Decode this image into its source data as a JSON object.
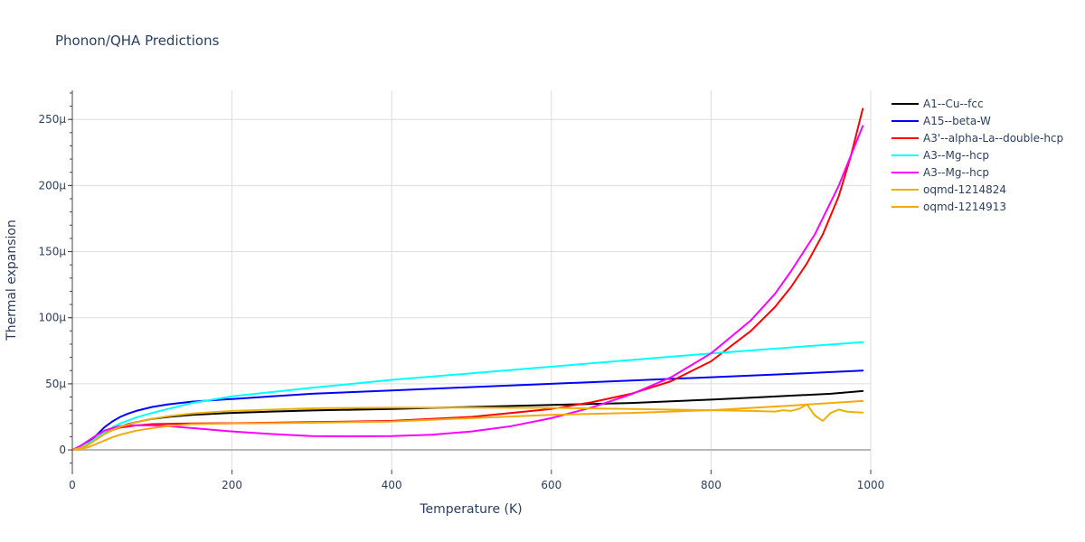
{
  "chart_data": {
    "type": "line",
    "title": "Phonon/QHA Predictions",
    "xlabel": "Temperature (K)",
    "ylabel": "Thermal expansion",
    "xlim": [
      0,
      1000
    ],
    "ylim": [
      -1.5e-05,
      0.000272
    ],
    "x_ticks": [
      0,
      200,
      400,
      600,
      800,
      1000
    ],
    "y_ticks": [
      0,
      5e-05,
      0.0001,
      0.00015,
      0.0002,
      0.00025
    ],
    "x_tick_labels": [
      "0",
      "200",
      "400",
      "600",
      "800",
      "1000"
    ],
    "y_tick_labels": [
      "0",
      "50μ",
      "100μ",
      "150μ",
      "200μ",
      "250μ"
    ],
    "grid": true,
    "legend_position": "right",
    "series": [
      {
        "name": "A1--Cu--fcc",
        "color": "#000000",
        "x": [
          0,
          10,
          20,
          30,
          40,
          50,
          60,
          70,
          80,
          100,
          120,
          150,
          200,
          250,
          300,
          400,
          500,
          600,
          700,
          800,
          850,
          900,
          950,
          990
        ],
        "y": [
          0,
          1.5e-06,
          4e-06,
          8e-06,
          1.2e-05,
          1.5e-05,
          1.75e-05,
          1.95e-05,
          2.1e-05,
          2.35e-05,
          2.5e-05,
          2.65e-05,
          2.8e-05,
          2.9e-05,
          2.98e-05,
          3.1e-05,
          3.25e-05,
          3.4e-05,
          3.55e-05,
          3.8e-05,
          3.95e-05,
          4.1e-05,
          4.25e-05,
          4.45e-05
        ]
      },
      {
        "name": "A15--beta-W",
        "color": "#0000ff",
        "x": [
          0,
          10,
          20,
          30,
          40,
          50,
          60,
          70,
          80,
          100,
          120,
          150,
          200,
          250,
          300,
          400,
          500,
          600,
          700,
          800,
          900,
          990
        ],
        "y": [
          0,
          2e-06,
          6e-06,
          1.1e-05,
          1.7e-05,
          2.15e-05,
          2.5e-05,
          2.75e-05,
          2.95e-05,
          3.25e-05,
          3.45e-05,
          3.65e-05,
          3.85e-05,
          4.05e-05,
          4.25e-05,
          4.5e-05,
          4.75e-05,
          5e-05,
          5.25e-05,
          5.5e-05,
          5.75e-05,
          6e-05
        ]
      },
      {
        "name": "A3'--alpha-La--double-hcp",
        "color": "#ff0000",
        "x": [
          0,
          10,
          20,
          30,
          40,
          50,
          60,
          80,
          100,
          150,
          200,
          300,
          400,
          500,
          550,
          600,
          650,
          700,
          750,
          800,
          850,
          880,
          900,
          920,
          940,
          960,
          975,
          990
        ],
        "y": [
          0,
          2e-06,
          5e-06,
          9e-06,
          1.25e-05,
          1.5e-05,
          1.7e-05,
          1.85e-05,
          1.95e-05,
          2e-05,
          2.02e-05,
          2.1e-05,
          2.2e-05,
          2.5e-05,
          2.8e-05,
          3.1e-05,
          3.6e-05,
          4.25e-05,
          5.2e-05,
          6.7e-05,
          9e-05,
          0.000108,
          0.000123,
          0.000141,
          0.000163,
          0.000192,
          0.000222,
          0.000258
        ]
      },
      {
        "name": "A3--Mg--hcp",
        "color": "#00ffff",
        "x": [
          0,
          10,
          20,
          30,
          40,
          50,
          60,
          80,
          100,
          120,
          150,
          200,
          300,
          400,
          500,
          600,
          700,
          800,
          900,
          990
        ],
        "y": [
          0,
          2e-06,
          5e-06,
          9e-06,
          1.35e-05,
          1.7e-05,
          2e-05,
          2.45e-05,
          2.8e-05,
          3.1e-05,
          3.55e-05,
          4.05e-05,
          4.7e-05,
          5.3e-05,
          5.8e-05,
          6.3e-05,
          6.8e-05,
          7.3e-05,
          7.75e-05,
          8.15e-05
        ]
      },
      {
        "name": "A3--Mg--hcp",
        "color": "#ff00ff",
        "x": [
          0,
          10,
          20,
          30,
          40,
          50,
          60,
          70,
          80,
          100,
          120,
          150,
          200,
          250,
          300,
          350,
          400,
          450,
          500,
          550,
          600,
          650,
          700,
          750,
          800,
          850,
          880,
          900,
          930,
          960,
          990
        ],
        "y": [
          0,
          3e-06,
          7e-06,
          1.1e-05,
          1.45e-05,
          1.65e-05,
          1.8e-05,
          1.85e-05,
          1.86e-05,
          1.85e-05,
          1.8e-05,
          1.65e-05,
          1.4e-05,
          1.2e-05,
          1.05e-05,
          1.03e-05,
          1.05e-05,
          1.15e-05,
          1.4e-05,
          1.8e-05,
          2.4e-05,
          3.2e-05,
          4.2e-05,
          5.5e-05,
          7.3e-05,
          9.8e-05,
          0.000118,
          0.000135,
          0.000163,
          0.0002,
          0.000245
        ]
      },
      {
        "name": "oqmd-1214824",
        "color": "#eab209",
        "x": [
          0,
          10,
          20,
          30,
          40,
          50,
          60,
          80,
          100,
          120,
          150,
          200,
          300,
          400,
          500,
          600,
          700,
          800,
          850,
          880,
          890,
          900,
          910,
          920,
          930,
          940,
          950,
          960,
          970,
          980,
          990
        ],
        "y": [
          0,
          1.5e-06,
          4e-06,
          8e-06,
          1.2e-05,
          1.5e-05,
          1.75e-05,
          2.1e-05,
          2.35e-05,
          2.55e-05,
          2.75e-05,
          2.95e-05,
          3.15e-05,
          3.2e-05,
          3.2e-05,
          3.18e-05,
          3.1e-05,
          3e-05,
          2.95e-05,
          2.9e-05,
          3e-05,
          2.95e-05,
          3.1e-05,
          3.45e-05,
          2.6e-05,
          2.2e-05,
          2.8e-05,
          3.05e-05,
          2.9e-05,
          2.85e-05,
          2.82e-05
        ]
      },
      {
        "name": "oqmd-1214913",
        "color": "#f4a812",
        "x": [
          0,
          10,
          20,
          30,
          40,
          50,
          60,
          70,
          80,
          100,
          120,
          150,
          200,
          300,
          400,
          500,
          600,
          700,
          800,
          900,
          950,
          990
        ],
        "y": [
          0,
          5e-07,
          2e-06,
          4.5e-06,
          7e-06,
          9.5e-06,
          1.15e-05,
          1.3e-05,
          1.45e-05,
          1.65e-05,
          1.8e-05,
          1.95e-05,
          2e-05,
          2.05e-05,
          2.15e-05,
          2.4e-05,
          2.65e-05,
          2.8e-05,
          3e-05,
          3.35e-05,
          3.55e-05,
          3.7e-05
        ]
      }
    ]
  }
}
